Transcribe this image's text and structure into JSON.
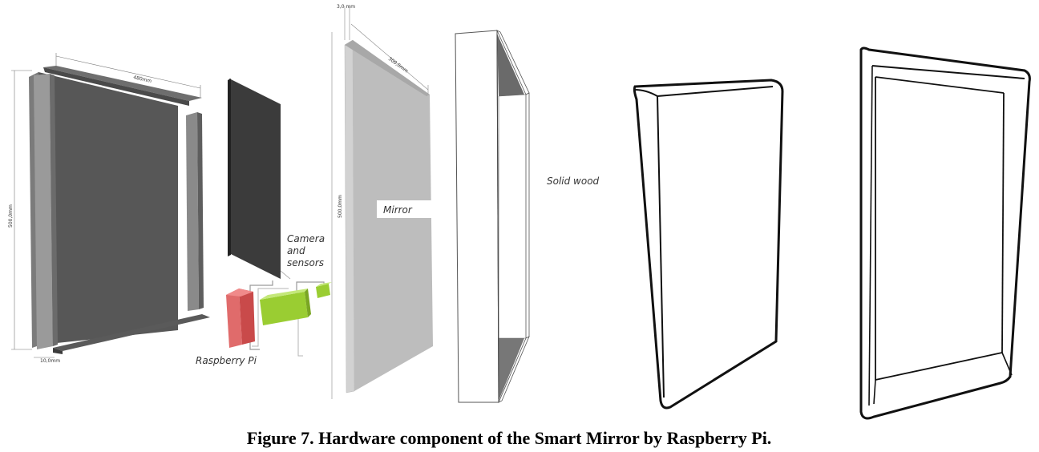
{
  "labels": {
    "camera_line1": "Camera",
    "camera_line2": "and",
    "camera_line3": "sensors",
    "raspberry_pi": "Raspberry Pi",
    "mirror": "Mirror",
    "solid_wood": "Solid wood"
  },
  "dimensions": {
    "width_480": "480mm",
    "height_500": "500,0mm",
    "thickness_10": "10,0mm",
    "mirror_thickness": "3,0 mm",
    "mirror_width": "300,0mm",
    "mirror_height": "500,0mm"
  },
  "caption": "Figure 7. Hardware component of the Smart Mirror by Raspberry Pi."
}
